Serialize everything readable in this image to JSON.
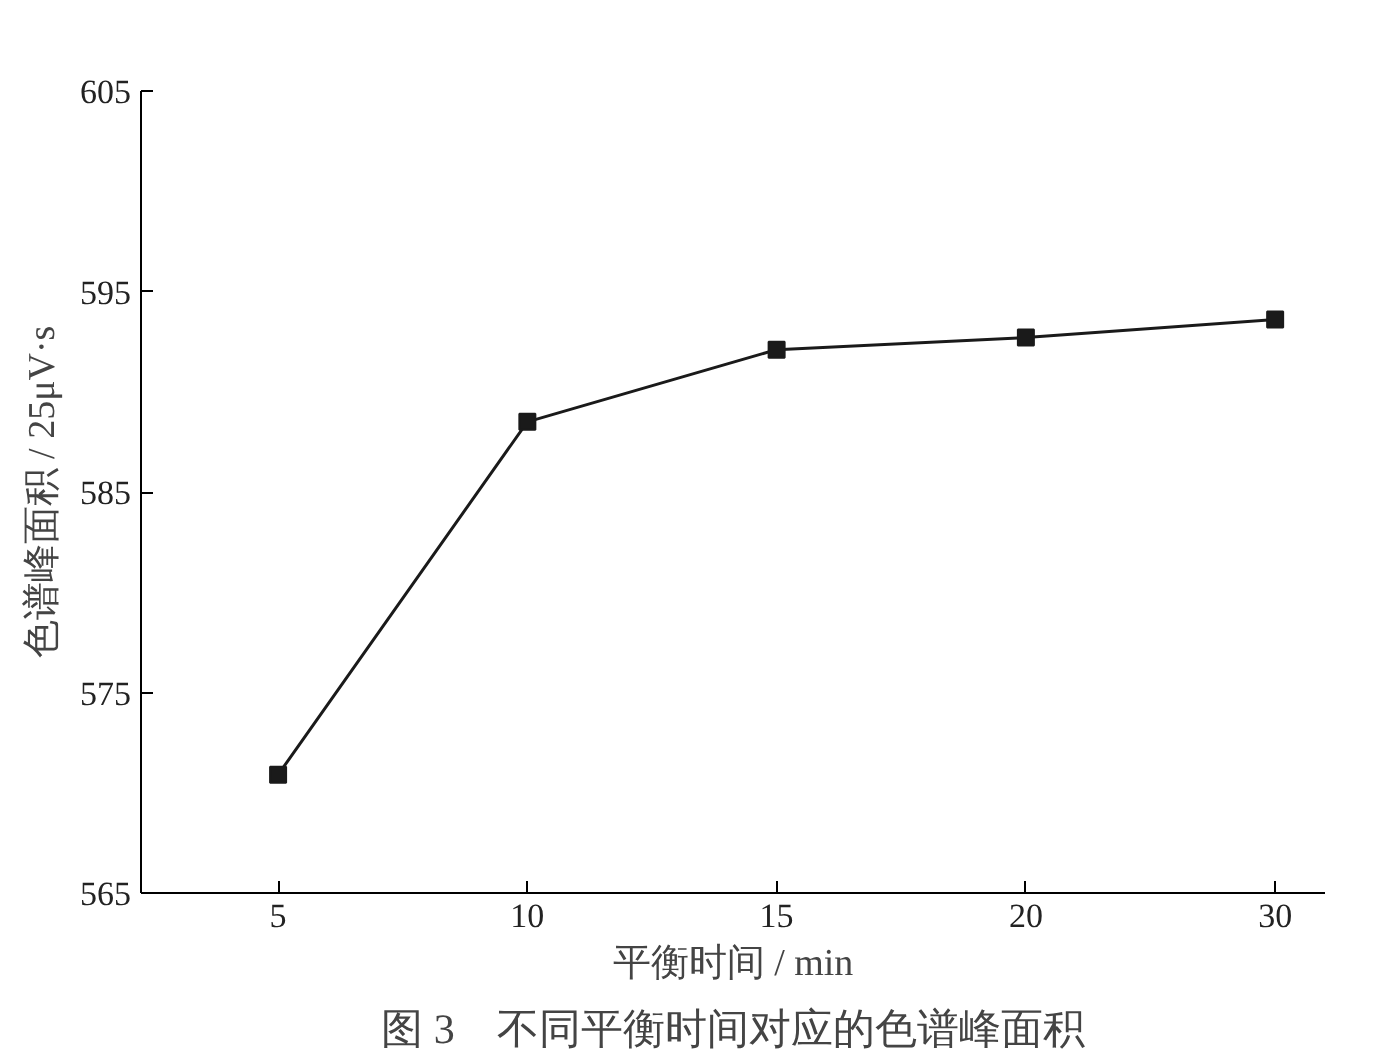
{
  "chart_data": {
    "type": "line",
    "xlabel": "平衡时间 / min",
    "ylabel": "色谱峰面积 / 25μV·s",
    "categories": [
      "5",
      "10",
      "15",
      "20",
      "30"
    ],
    "series": [
      {
        "color": "#1a1a1a",
        "values": [
          570.9,
          588.5,
          592.1,
          592.7,
          593.6
        ]
      }
    ],
    "ylim": [
      565,
      605
    ],
    "yticks": [
      565,
      575,
      585,
      595,
      605
    ],
    "marker": "square",
    "line_style": "solid",
    "grid": false,
    "annotations": [
      "图 3　不同平衡时间对应的色谱峰面积"
    ]
  }
}
